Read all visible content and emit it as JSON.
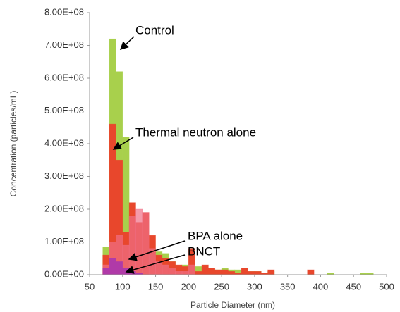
{
  "chart_data": {
    "type": "histogram",
    "xlabel": "Particle Diameter (nm)",
    "ylabel": "Concentration (particles/mL)",
    "bins": [
      70,
      80,
      90,
      100,
      110,
      120,
      130,
      140,
      150,
      160,
      170,
      180,
      190,
      200,
      210,
      220,
      230,
      240,
      250,
      260,
      270,
      280,
      290,
      300,
      310,
      320,
      330,
      340,
      350,
      360,
      370,
      380,
      390,
      400,
      410,
      420,
      430,
      440,
      450,
      460,
      470,
      480
    ],
    "series": [
      {
        "name": "Control",
        "color": "#a8d04c",
        "values": [
          85000000.0,
          720000000.0,
          620000000.0,
          420000000.0,
          160000000.0,
          130000000.0,
          100000000.0,
          80000000.0,
          70000000.0,
          65000000.0,
          40000000.0,
          20000000.0,
          30000000.0,
          20000000.0,
          25000000.0,
          20000000.0,
          15000000.0,
          15000000.0,
          20000000.0,
          15000000.0,
          15000000.0,
          10000000.0,
          10000000.0,
          10000000.0,
          5000000.0,
          10000000.0,
          0,
          0,
          0,
          0,
          0,
          0,
          0,
          0,
          5000000.0,
          0,
          0,
          0,
          0,
          5000000.0,
          5000000.0
        ]
      },
      {
        "name": "Thermal neutron alone",
        "color": "#e8472c",
        "values": [
          60000000.0,
          460000000.0,
          350000000.0,
          130000000.0,
          220000000.0,
          160000000.0,
          190000000.0,
          120000000.0,
          60000000.0,
          50000000.0,
          40000000.0,
          30000000.0,
          25000000.0,
          80000000.0,
          10000000.0,
          30000000.0,
          20000000.0,
          15000000.0,
          15000000.0,
          10000000.0,
          5000000.0,
          20000000.0,
          10000000.0,
          10000000.0,
          5000000.0,
          15000000.0,
          0,
          0,
          0,
          0,
          0,
          15000000.0,
          0,
          0,
          0,
          0,
          0,
          0,
          0,
          0,
          0
        ]
      },
      {
        "name": "BPA alone",
        "color": "#f06f86",
        "values": [
          30000000.0,
          100000000.0,
          120000000.0,
          90000000.0,
          180000000.0,
          200000000.0,
          190000000.0,
          80000000.0,
          40000000.0,
          30000000.0,
          20000000.0,
          10000000.0,
          10000000.0,
          30000000.0,
          0,
          0,
          0,
          0,
          0,
          0,
          0,
          0,
          0,
          0,
          0,
          0,
          0,
          0,
          0,
          0,
          0,
          0,
          0,
          0,
          0,
          0,
          0,
          0,
          0,
          0,
          0
        ]
      },
      {
        "name": "BNCT",
        "color": "#b03aa8",
        "values": [
          20000000.0,
          50000000.0,
          40000000.0,
          20000000.0,
          10000000.0,
          5000000.0,
          0,
          0,
          0,
          0,
          0,
          0,
          0,
          0,
          0,
          0,
          0,
          0,
          0,
          0,
          0,
          0,
          0,
          0,
          0,
          0,
          0,
          0,
          0,
          0,
          0,
          0,
          0,
          0,
          0,
          0,
          0,
          0,
          0,
          0,
          0
        ]
      }
    ],
    "xlim": [
      50,
      500
    ],
    "xticks": [
      50,
      100,
      150,
      200,
      250,
      300,
      350,
      400,
      450,
      500
    ],
    "ylim": [
      0,
      800000000
    ],
    "yticks": [
      {
        "value": 0,
        "label": "0.00E+00"
      },
      {
        "value": 100000000,
        "label": "1.00E+08"
      },
      {
        "value": 200000000,
        "label": "2.00E+08"
      },
      {
        "value": 300000000,
        "label": "3.00E+08"
      },
      {
        "value": 400000000,
        "label": "4.00E+08"
      },
      {
        "value": 500000000,
        "label": "5.00E+08"
      },
      {
        "value": 600000000,
        "label": "6.00E+08"
      },
      {
        "value": 700000000,
        "label": "7.00E+08"
      },
      {
        "value": 800000000,
        "label": "8.00E+08"
      }
    ],
    "annotations": [
      "Control",
      "Thermal neutron alone",
      "BPA alone",
      "BNCT"
    ],
    "grid": false
  }
}
